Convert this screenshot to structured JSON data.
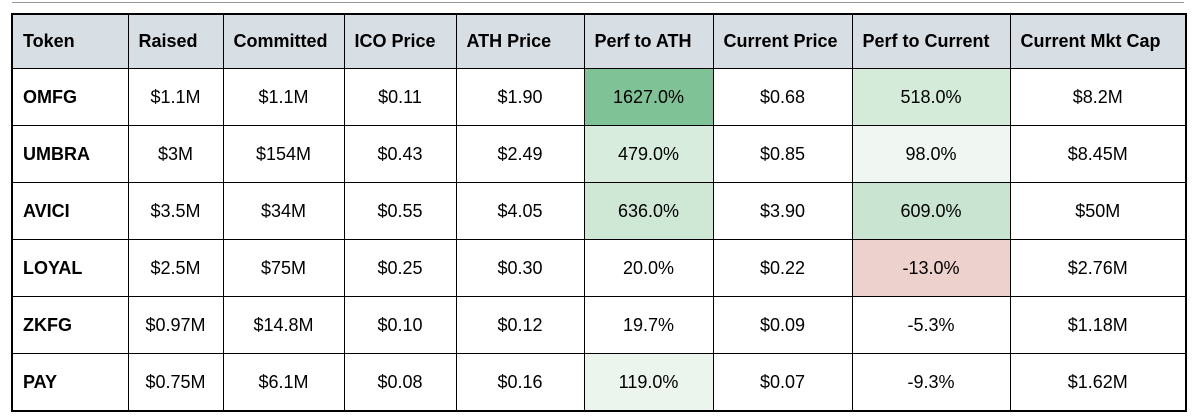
{
  "table": {
    "columns": [
      {
        "slug": "token",
        "label": "Token"
      },
      {
        "slug": "raised",
        "label": "Raised"
      },
      {
        "slug": "committed",
        "label": "Committed"
      },
      {
        "slug": "ico-price",
        "label": "ICO Price"
      },
      {
        "slug": "ath-price",
        "label": "ATH Price"
      },
      {
        "slug": "perf-to-ath",
        "label": "Perf to ATH"
      },
      {
        "slug": "current-price",
        "label": "Current Price"
      },
      {
        "slug": "perf-to-current",
        "label": "Perf to Current"
      },
      {
        "slug": "current-mkt-cap",
        "label": "Current Mkt Cap"
      }
    ],
    "rows": [
      {
        "cells": [
          "OMFG",
          "$1.1M",
          "$1.1M",
          "$0.11",
          "$1.90",
          "1627.0%",
          "$0.68",
          "518.0%",
          "$8.2M"
        ],
        "cell_bg": {
          "5": "#7fc296",
          "7": "#d5ebda"
        }
      },
      {
        "cells": [
          "UMBRA",
          "$3M",
          "$154M",
          "$0.43",
          "$2.49",
          "479.0%",
          "$0.85",
          "98.0%",
          "$8.45M"
        ],
        "cell_bg": {
          "5": "#d7ecdc",
          "7": "#f0f7f2"
        }
      },
      {
        "cells": [
          "AVICI",
          "$3.5M",
          "$34M",
          "$0.55",
          "$4.05",
          "636.0%",
          "$3.90",
          "609.0%",
          "$50M"
        ],
        "cell_bg": {
          "5": "#cfe8d5",
          "7": "#c9e5d1"
        }
      },
      {
        "cells": [
          "LOYAL",
          "$2.5M",
          "$75M",
          "$0.25",
          "$0.30",
          "20.0%",
          "$0.22",
          "-13.0%",
          "$2.76M"
        ],
        "cell_bg": {
          "7": "#ecd1cd"
        }
      },
      {
        "cells": [
          "ZKFG",
          "$0.97M",
          "$14.8M",
          "$0.10",
          "$0.12",
          "19.7%",
          "$0.09",
          "-5.3%",
          "$1.18M"
        ],
        "cell_bg": {}
      },
      {
        "cells": [
          "PAY",
          "$0.75M",
          "$6.1M",
          "$0.08",
          "$0.16",
          "119.0%",
          "$0.07",
          "-9.3%",
          "$1.62M"
        ],
        "cell_bg": {
          "5": "#ecf4ee"
        }
      }
    ]
  },
  "colors": {
    "header_bg": "#d7dee4",
    "grid_border": "#000000",
    "positive_strong": "#7fc296",
    "positive_light": "#d5ebda",
    "positive_faint": "#f0f7f2",
    "negative": "#ecd1cd",
    "row_bg": "#ffffff"
  }
}
